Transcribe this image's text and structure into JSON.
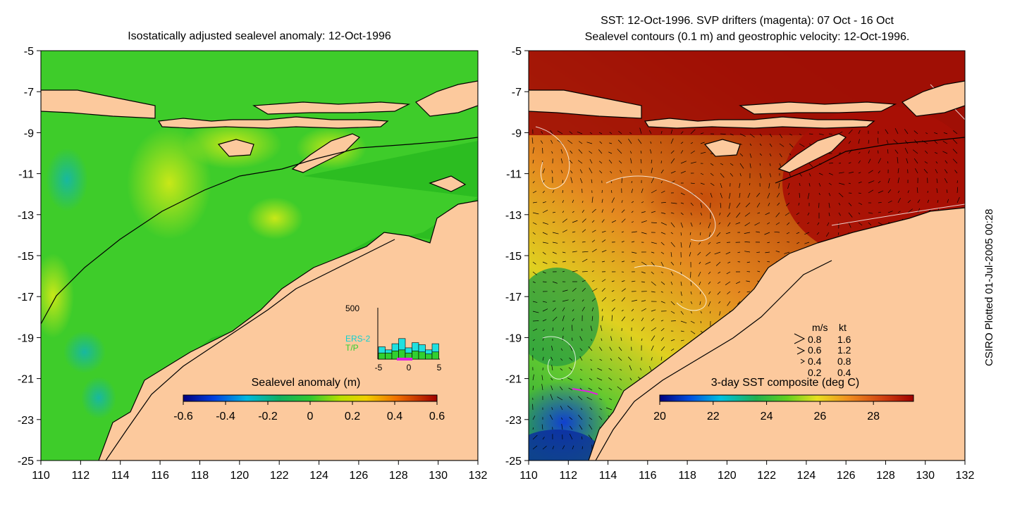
{
  "left_panel": {
    "title": "Isostatically adjusted sealevel anomaly: 12-Oct-1996",
    "y_ticks": [
      "-5",
      "-7",
      "-9",
      "-11",
      "-13",
      "-15",
      "-17",
      "-19",
      "-21",
      "-23",
      "-25"
    ],
    "x_ticks": [
      "110",
      "112",
      "114",
      "116",
      "118",
      "120",
      "122",
      "124",
      "126",
      "128",
      "130",
      "132"
    ],
    "colorbar": {
      "title": "Sealevel anomaly (m)",
      "ticks": [
        "-0.6",
        "-0.4",
        "-0.2",
        "0",
        "0.2",
        "0.4",
        "0.6"
      ],
      "range": [
        -0.6,
        0.6
      ]
    },
    "inset": {
      "ytick": "500",
      "xticks": [
        "-5",
        "0",
        "5"
      ],
      "legend_ers2": "ERS-2",
      "legend_tp": "T/P",
      "bar_counts_cyan": [
        120,
        90,
        150,
        200,
        110,
        160,
        140,
        90,
        150
      ],
      "bar_counts_green": [
        60,
        60,
        80,
        90,
        60,
        80,
        70,
        50,
        70
      ]
    }
  },
  "right_panel": {
    "title_line1": "SST: 12-Oct-1996. SVP drifters (magenta): 07 Oct - 16 Oct",
    "title_line2": "Sealevel contours (0.1 m) and geostrophic velocity: 12-Oct-1996.",
    "y_ticks": [
      "-5",
      "-7",
      "-9",
      "-11",
      "-13",
      "-15",
      "-17",
      "-19",
      "-21",
      "-23",
      "-25"
    ],
    "x_ticks": [
      "110",
      "112",
      "114",
      "116",
      "118",
      "120",
      "122",
      "124",
      "126",
      "128",
      "130",
      "132"
    ],
    "colorbar": {
      "title": "3-day SST composite (deg C)",
      "ticks": [
        "20",
        "22",
        "24",
        "26",
        "28"
      ],
      "range": [
        20,
        29.5
      ]
    },
    "velocity_legend": {
      "header_ms": "m/s",
      "header_kt": "kt",
      "rows": [
        {
          "ms": "0.8",
          "kt": "1.6"
        },
        {
          "ms": "0.6",
          "kt": "1.2"
        },
        {
          "ms": "0.4",
          "kt": "0.8"
        },
        {
          "ms": "0.2",
          "kt": "0.4"
        }
      ]
    }
  },
  "credit": "CSIRO Plotted 01-Jul-2005 00:28",
  "colors": {
    "land": "#fcc99d",
    "ocean_green": "#3ecc2a",
    "ocean_shallow": "#22b31c",
    "sst_dark_red": "#a80f05",
    "sst_orange": "#d9650c",
    "sst_yellow": "#e6d21a"
  }
}
